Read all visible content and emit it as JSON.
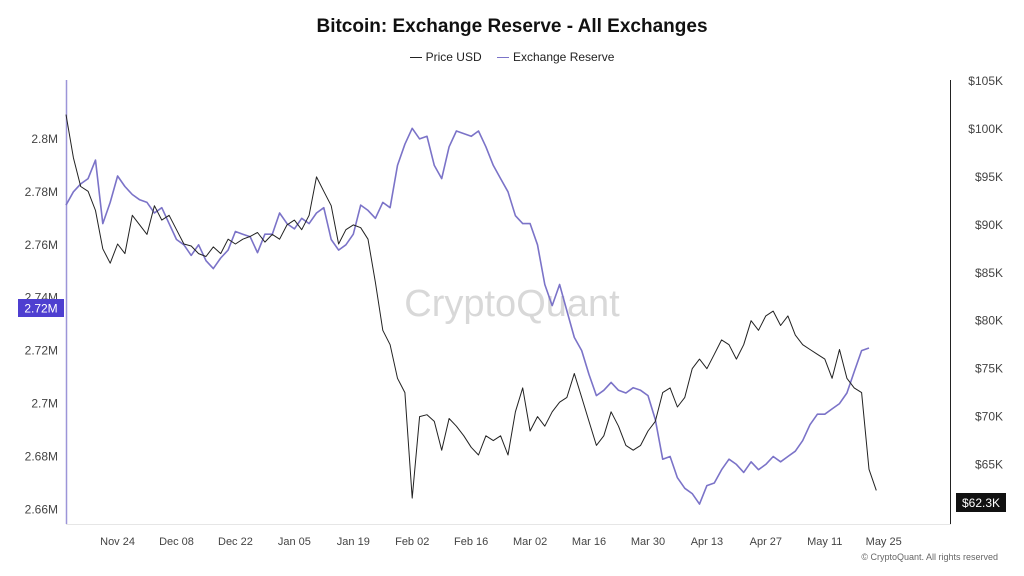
{
  "title": "Bitcoin: Exchange Reserve - All Exchanges",
  "watermark": "CryptoQuant",
  "copyright": "© CryptoQuant. All rights reserved",
  "colors": {
    "price": "#222222",
    "reserve": "#7b73c8",
    "reserve_badge": "#4e3fd0",
    "price_badge": "#111111"
  },
  "chart_data": {
    "type": "line",
    "title": "Bitcoin: Exchange Reserve - All Exchanges",
    "legend": [
      "Price USD",
      "Exchange Reserve"
    ],
    "legend_position": "top-center",
    "grid": false,
    "x_ticks": [
      "Nov 24",
      "Dec 08",
      "Dec 22",
      "Jan 05",
      "Jan 19",
      "Feb 02",
      "Feb 16",
      "Mar 02",
      "Mar 16",
      "Mar 30",
      "Apr 13",
      "Apr 27",
      "May 11",
      "May 25"
    ],
    "x_range": [
      0,
      120
    ],
    "x_tick_positions": [
      7,
      15,
      23,
      31,
      39,
      47,
      55,
      63,
      71,
      79,
      87,
      95,
      103,
      111
    ],
    "left_axis": {
      "label": "Exchange Reserve",
      "ticks": [
        "2.8M",
        "2.78M",
        "2.76M",
        "2.74M",
        "2.72M",
        "2.7M",
        "2.68M",
        "2.66M"
      ],
      "range": [
        2.6545,
        2.8215
      ]
    },
    "right_axis": {
      "label": "Price USD",
      "ticks": [
        "$105K",
        "$100K",
        "$95K",
        "$90K",
        "$85K",
        "$80K",
        "$75K",
        "$70K",
        "$65K"
      ],
      "range": [
        58800,
        104900
      ]
    },
    "current_reserve_label": "2.72M",
    "current_price_label": "$62.3K",
    "series": [
      {
        "name": "Exchange Reserve",
        "axis": "left",
        "points": [
          [
            0,
            2.775
          ],
          [
            1,
            2.78
          ],
          [
            2,
            2.783
          ],
          [
            3,
            2.785
          ],
          [
            4,
            2.792
          ],
          [
            5,
            2.768
          ],
          [
            6,
            2.776
          ],
          [
            7,
            2.786
          ],
          [
            8,
            2.782
          ],
          [
            9,
            2.779
          ],
          [
            10,
            2.777
          ],
          [
            11,
            2.776
          ],
          [
            12,
            2.772
          ],
          [
            13,
            2.774
          ],
          [
            14,
            2.768
          ],
          [
            15,
            2.762
          ],
          [
            16,
            2.76
          ],
          [
            17,
            2.756
          ],
          [
            18,
            2.76
          ],
          [
            19,
            2.754
          ],
          [
            20,
            2.751
          ],
          [
            21,
            2.755
          ],
          [
            22,
            2.758
          ],
          [
            23,
            2.765
          ],
          [
            24,
            2.764
          ],
          [
            25,
            2.763
          ],
          [
            26,
            2.757
          ],
          [
            27,
            2.764
          ],
          [
            28,
            2.764
          ],
          [
            29,
            2.772
          ],
          [
            30,
            2.768
          ],
          [
            31,
            2.766
          ],
          [
            32,
            2.77
          ],
          [
            33,
            2.768
          ],
          [
            34,
            2.772
          ],
          [
            35,
            2.774
          ],
          [
            36,
            2.762
          ],
          [
            37,
            2.758
          ],
          [
            38,
            2.76
          ],
          [
            39,
            2.764
          ],
          [
            40,
            2.775
          ],
          [
            41,
            2.773
          ],
          [
            42,
            2.77
          ],
          [
            43,
            2.776
          ],
          [
            44,
            2.774
          ],
          [
            45,
            2.79
          ],
          [
            46,
            2.798
          ],
          [
            47,
            2.804
          ],
          [
            48,
            2.8
          ],
          [
            49,
            2.801
          ],
          [
            50,
            2.79
          ],
          [
            51,
            2.785
          ],
          [
            52,
            2.797
          ],
          [
            53,
            2.803
          ],
          [
            54,
            2.802
          ],
          [
            55,
            2.801
          ],
          [
            56,
            2.803
          ],
          [
            57,
            2.797
          ],
          [
            58,
            2.79
          ],
          [
            59,
            2.785
          ],
          [
            60,
            2.78
          ],
          [
            61,
            2.771
          ],
          [
            62,
            2.768
          ],
          [
            63,
            2.768
          ],
          [
            64,
            2.76
          ],
          [
            65,
            2.745
          ],
          [
            66,
            2.737
          ],
          [
            67,
            2.745
          ],
          [
            68,
            2.735
          ],
          [
            69,
            2.725
          ],
          [
            70,
            2.72
          ],
          [
            71,
            2.711
          ],
          [
            72,
            2.703
          ],
          [
            73,
            2.705
          ],
          [
            74,
            2.708
          ],
          [
            75,
            2.705
          ],
          [
            76,
            2.704
          ],
          [
            77,
            2.706
          ],
          [
            78,
            2.705
          ],
          [
            79,
            2.703
          ],
          [
            80,
            2.694
          ],
          [
            81,
            2.679
          ],
          [
            82,
            2.68
          ],
          [
            83,
            2.672
          ],
          [
            84,
            2.668
          ],
          [
            85,
            2.666
          ],
          [
            86,
            2.662
          ],
          [
            87,
            2.669
          ],
          [
            88,
            2.67
          ],
          [
            89,
            2.675
          ],
          [
            90,
            2.679
          ],
          [
            91,
            2.677
          ],
          [
            92,
            2.674
          ],
          [
            93,
            2.678
          ],
          [
            94,
            2.675
          ],
          [
            95,
            2.677
          ],
          [
            96,
            2.68
          ],
          [
            97,
            2.678
          ],
          [
            98,
            2.68
          ],
          [
            99,
            2.682
          ],
          [
            100,
            2.686
          ],
          [
            101,
            2.692
          ],
          [
            102,
            2.696
          ],
          [
            103,
            2.696
          ],
          [
            104,
            2.698
          ],
          [
            105,
            2.7
          ],
          [
            106,
            2.704
          ],
          [
            107,
            2.712
          ],
          [
            108,
            2.72
          ],
          [
            109,
            2.721
          ]
        ]
      },
      {
        "name": "Price USD",
        "axis": "right",
        "points": [
          [
            0,
            101500
          ],
          [
            1,
            97000
          ],
          [
            2,
            94000
          ],
          [
            3,
            93500
          ],
          [
            4,
            91500
          ],
          [
            5,
            87500
          ],
          [
            6,
            86000
          ],
          [
            7,
            88000
          ],
          [
            8,
            87000
          ],
          [
            9,
            91000
          ],
          [
            10,
            90000
          ],
          [
            11,
            89000
          ],
          [
            12,
            92000
          ],
          [
            13,
            90500
          ],
          [
            14,
            91000
          ],
          [
            15,
            89500
          ],
          [
            16,
            88000
          ],
          [
            17,
            87800
          ],
          [
            18,
            87000
          ],
          [
            19,
            86700
          ],
          [
            20,
            87700
          ],
          [
            21,
            87000
          ],
          [
            22,
            88500
          ],
          [
            23,
            88000
          ],
          [
            24,
            88500
          ],
          [
            25,
            88800
          ],
          [
            26,
            89200
          ],
          [
            27,
            88200
          ],
          [
            28,
            89000
          ],
          [
            29,
            88500
          ],
          [
            30,
            90000
          ],
          [
            31,
            90500
          ],
          [
            32,
            89500
          ],
          [
            33,
            91000
          ],
          [
            34,
            95000
          ],
          [
            35,
            93500
          ],
          [
            36,
            92000
          ],
          [
            37,
            88000
          ],
          [
            38,
            89500
          ],
          [
            39,
            90000
          ],
          [
            40,
            89700
          ],
          [
            41,
            88500
          ],
          [
            42,
            84000
          ],
          [
            43,
            79000
          ],
          [
            44,
            77500
          ],
          [
            45,
            74000
          ],
          [
            46,
            72500
          ],
          [
            47,
            61500
          ],
          [
            48,
            70000
          ],
          [
            49,
            70200
          ],
          [
            50,
            69500
          ],
          [
            51,
            66500
          ],
          [
            52,
            69800
          ],
          [
            53,
            69000
          ],
          [
            54,
            68000
          ],
          [
            55,
            66800
          ],
          [
            56,
            66000
          ],
          [
            57,
            68000
          ],
          [
            58,
            67500
          ],
          [
            59,
            68000
          ],
          [
            60,
            66000
          ],
          [
            61,
            70500
          ],
          [
            62,
            73000
          ],
          [
            63,
            68500
          ],
          [
            64,
            70000
          ],
          [
            65,
            69000
          ],
          [
            66,
            70500
          ],
          [
            67,
            71500
          ],
          [
            68,
            72000
          ],
          [
            69,
            74500
          ],
          [
            70,
            72000
          ],
          [
            71,
            69500
          ],
          [
            72,
            67000
          ],
          [
            73,
            68000
          ],
          [
            74,
            70500
          ],
          [
            75,
            69000
          ],
          [
            76,
            67000
          ],
          [
            77,
            66500
          ],
          [
            78,
            67000
          ],
          [
            79,
            68500
          ],
          [
            80,
            69500
          ],
          [
            81,
            72500
          ],
          [
            82,
            73000
          ],
          [
            83,
            71000
          ],
          [
            84,
            72000
          ],
          [
            85,
            75000
          ],
          [
            86,
            76000
          ],
          [
            87,
            75000
          ],
          [
            88,
            76500
          ],
          [
            89,
            78000
          ],
          [
            90,
            77500
          ],
          [
            91,
            76000
          ],
          [
            92,
            77500
          ],
          [
            93,
            80000
          ],
          [
            94,
            79000
          ],
          [
            95,
            80500
          ],
          [
            96,
            81000
          ],
          [
            97,
            79500
          ],
          [
            98,
            80500
          ],
          [
            99,
            78500
          ],
          [
            100,
            77500
          ],
          [
            101,
            77000
          ],
          [
            102,
            76500
          ],
          [
            103,
            76000
          ],
          [
            104,
            74000
          ],
          [
            105,
            77000
          ],
          [
            106,
            74000
          ],
          [
            107,
            73000
          ],
          [
            108,
            72500
          ],
          [
            109,
            64500
          ],
          [
            110,
            62300
          ]
        ]
      }
    ]
  }
}
